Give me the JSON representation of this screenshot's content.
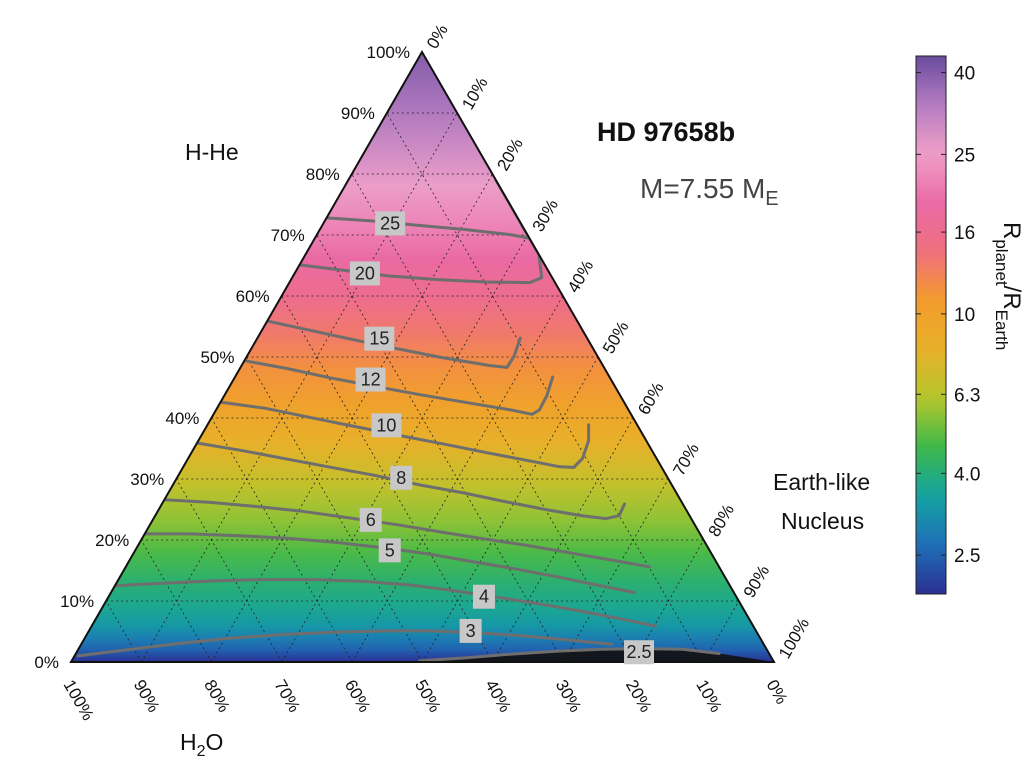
{
  "chart_data": {
    "type": "ternary",
    "title": "HD 97658b",
    "subtitle_prefix": "M=7.55 M",
    "subtitle_sub": "E",
    "axes": {
      "top": "H-He",
      "right_line1": "Earth-like",
      "right_line2": "Nucleus",
      "bottom_prefix": "H",
      "bottom_sub": "2",
      "bottom_suffix": "O"
    },
    "ticks": {
      "left": [
        "0%",
        "10%",
        "20%",
        "30%",
        "40%",
        "50%",
        "60%",
        "70%",
        "80%",
        "90%",
        "100%"
      ],
      "right": [
        "0%",
        "10%",
        "20%",
        "30%",
        "40%",
        "50%",
        "60%",
        "70%",
        "80%",
        "90%",
        "100%"
      ],
      "bottom": [
        "100%",
        "90%",
        "80%",
        "70%",
        "60%",
        "50%",
        "40%",
        "30%",
        "20%",
        "10%",
        "0%"
      ]
    },
    "colorbar": {
      "label_parts": [
        "R",
        "planet",
        "/R",
        "Earth"
      ],
      "scale": "log",
      "range": [
        2.0,
        44
      ],
      "ticks": [
        {
          "value": 40,
          "label": "40"
        },
        {
          "value": 25,
          "label": "25"
        },
        {
          "value": 16,
          "label": "16"
        },
        {
          "value": 10,
          "label": "10"
        },
        {
          "value": 6.3,
          "label": "6.3"
        },
        {
          "value": 4.0,
          "label": "4.0"
        },
        {
          "value": 2.5,
          "label": "2.5"
        }
      ],
      "colors": [
        "#2b2f93",
        "#1f6fb8",
        "#14a3a1",
        "#3db84a",
        "#b5c72c",
        "#e8b02a",
        "#f39b2c",
        "#ef6f7e",
        "#ea6aa6",
        "#ef9fc8",
        "#b57cc2",
        "#6a4c9e"
      ]
    },
    "contours": [
      {
        "level": 25,
        "label": "25",
        "h": [
          72.8,
          72.3,
          71.6,
          70.9,
          70.1,
          69.5,
          73.3,
          79.0
        ],
        "n": [
          0.0,
          6.8,
          13.5,
          20.6,
          27.2,
          30.6,
          28.6,
          25.4
        ]
      },
      {
        "level": 20,
        "label": "20",
        "h": [
          65.1,
          64.2,
          63.3,
          62.7,
          62.3,
          62.2,
          63.0,
          66.8,
          71.7
        ],
        "n": [
          0.0,
          6.8,
          13.5,
          20.6,
          27.9,
          34.2,
          35.5,
          34.7,
          33.3
        ]
      },
      {
        "level": 15,
        "label": "15",
        "h": [
          55.9,
          54.4,
          52.9,
          51.4,
          49.9,
          48.6,
          48.3,
          50.1,
          53.1
        ],
        "n": [
          0.0,
          6.8,
          13.5,
          20.6,
          27.9,
          35.3,
          37.9,
          38.0,
          37.4
        ]
      },
      {
        "level": 12,
        "label": "12",
        "h": [
          49.4,
          48.1,
          46.6,
          45.2,
          43.8,
          42.5,
          41.3,
          40.6,
          41.3,
          43.6,
          46.7
        ],
        "n": [
          0.0,
          6.8,
          13.5,
          20.6,
          27.9,
          35.3,
          42.1,
          45.3,
          46.0,
          45.9,
          45.2
        ]
      },
      {
        "level": 10,
        "label": "10",
        "h": [
          42.6,
          41.6,
          40.2,
          38.7,
          37.2,
          35.7,
          34.3,
          33.0,
          32.0,
          31.9,
          33.4,
          36.3,
          38.9
        ],
        "n": [
          0.0,
          6.8,
          13.5,
          20.6,
          27.9,
          35.3,
          42.1,
          48.6,
          53.6,
          55.6,
          56.1,
          55.5,
          54.2
        ]
      },
      {
        "level": 8,
        "label": "8",
        "h": [
          35.9,
          34.7,
          33.4,
          32.0,
          30.6,
          29.0,
          27.7,
          26.3,
          25.0,
          24.0,
          23.5,
          24.0,
          25.9
        ],
        "n": [
          0.0,
          6.8,
          13.5,
          20.6,
          27.9,
          35.3,
          42.1,
          48.6,
          55.0,
          60.6,
          64.4,
          66.0,
          65.8
        ]
      },
      {
        "level": 6,
        "label": "6",
        "h": [
          26.6,
          26.2,
          25.5,
          24.7,
          23.6,
          22.5,
          21.3,
          20.2,
          19.1,
          17.9,
          16.7,
          15.6
        ],
        "n": [
          0.0,
          6.5,
          13.5,
          20.6,
          27.9,
          35.3,
          42.1,
          48.6,
          55.4,
          62.0,
          68.6,
          74.5
        ]
      },
      {
        "level": 5,
        "label": "5",
        "h": [
          21.0,
          21.0,
          20.7,
          20.3,
          19.6,
          18.7,
          17.7,
          16.5,
          15.3,
          14.0,
          12.6,
          11.4
        ],
        "n": [
          0.0,
          6.5,
          13.5,
          20.6,
          27.9,
          35.3,
          42.1,
          48.6,
          55.4,
          62.0,
          68.6,
          74.5
        ]
      },
      {
        "level": 4,
        "label": "4",
        "h": [
          12.5,
          12.9,
          13.3,
          13.5,
          13.5,
          13.2,
          12.6,
          11.7,
          10.6,
          9.5,
          8.3,
          7.1,
          5.9
        ],
        "n": [
          0.0,
          6.5,
          13.5,
          20.6,
          27.9,
          35.3,
          42.1,
          48.6,
          55.4,
          62.0,
          68.6,
          74.5,
          80.2
        ]
      },
      {
        "level": 3,
        "label": "3",
        "h": [
          1.0,
          2.0,
          3.0,
          3.9,
          4.5,
          4.9,
          5.1,
          5.1,
          4.8,
          4.3,
          3.6,
          2.9
        ],
        "n": [
          0.5,
          7.0,
          13.5,
          20.6,
          27.9,
          35.3,
          42.1,
          48.6,
          55.4,
          62.0,
          69.0,
          75.5
        ]
      },
      {
        "level": 2.5,
        "label": "2.5",
        "h": [
          0.2,
          0.7,
          1.3,
          1.8,
          2.1,
          2.2,
          2.1,
          1.4
        ],
        "n": [
          49.5,
          56.0,
          62.0,
          68.6,
          74.5,
          80.2,
          86.0,
          91.5
        ]
      }
    ],
    "contour_label_positions": [
      {
        "level": 25,
        "h": 71.9,
        "n": 9.5
      },
      {
        "level": 20,
        "h": 63.7,
        "n": 10.0
      },
      {
        "level": 15,
        "h": 53.0,
        "n": 17.4
      },
      {
        "level": 12,
        "h": 46.3,
        "n": 19.5
      },
      {
        "level": 10,
        "h": 38.8,
        "n": 25.5
      },
      {
        "level": 8,
        "h": 30.2,
        "n": 31.9
      },
      {
        "level": 6,
        "h": 23.3,
        "n": 31.0
      },
      {
        "level": 5,
        "h": 18.3,
        "n": 36.2
      },
      {
        "level": 4,
        "h": 10.7,
        "n": 53.4
      },
      {
        "level": 3,
        "h": 5.1,
        "n": 54.3
      },
      {
        "level": 2.5,
        "h": 1.6,
        "n": 80.0
      }
    ],
    "field_profile": {
      "h": [
        0,
        2,
        4,
        6,
        9,
        13,
        18,
        23,
        29,
        36,
        42,
        48,
        54,
        60,
        66,
        72,
        78,
        85,
        92,
        100
      ],
      "r": [
        2.0,
        2.5,
        2.9,
        3.3,
        3.7,
        4.1,
        4.8,
        5.6,
        6.6,
        8.2,
        9.8,
        11.5,
        13.5,
        16.0,
        18.5,
        22.0,
        25.5,
        30.0,
        35.0,
        40.0
      ]
    },
    "dark_region_label": "2.5"
  }
}
